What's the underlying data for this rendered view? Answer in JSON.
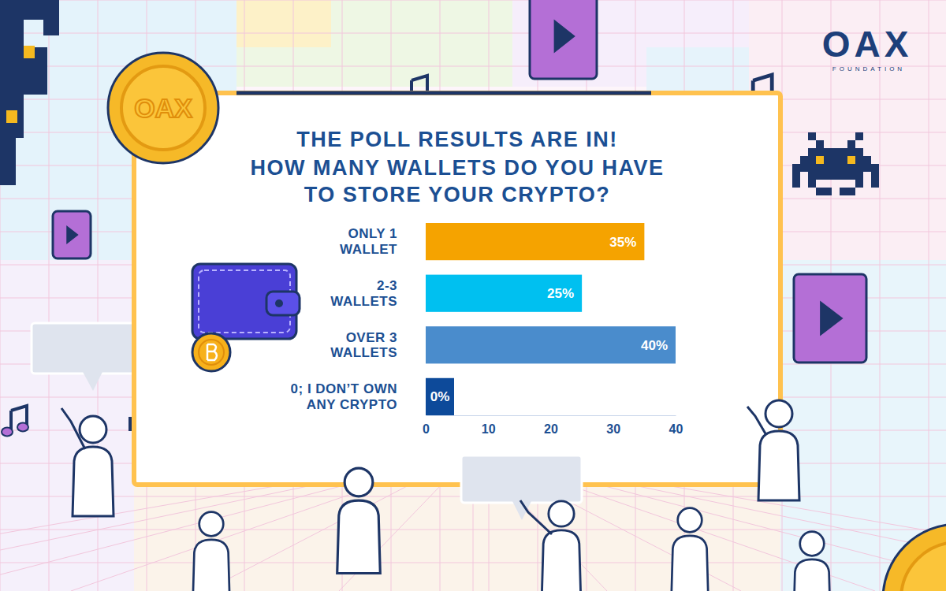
{
  "brand": {
    "name": "OAX",
    "tagline": "FOUNDATION"
  },
  "chart_data": {
    "type": "bar",
    "orientation": "horizontal",
    "title": "THE POLL RESULTS ARE IN!",
    "subtitle": "HOW MANY WALLETS DO YOU HAVE TO STORE YOUR CRYPTO?",
    "categories": [
      "ONLY 1 WALLET",
      "2-3 WALLETS",
      "OVER 3 WALLETS",
      "0; I DON’T OWN ANY CRYPTO"
    ],
    "values": [
      35,
      25,
      40,
      0
    ],
    "value_labels": [
      "35%",
      "25%",
      "40%",
      "0%"
    ],
    "colors": [
      "#f5a300",
      "#00c0f0",
      "#4a8ccc",
      "#0d4a9a"
    ],
    "data_labels": true,
    "grid": false,
    "xlim": [
      0,
      40
    ],
    "xticks": [
      0,
      10,
      20,
      30,
      40
    ]
  }
}
